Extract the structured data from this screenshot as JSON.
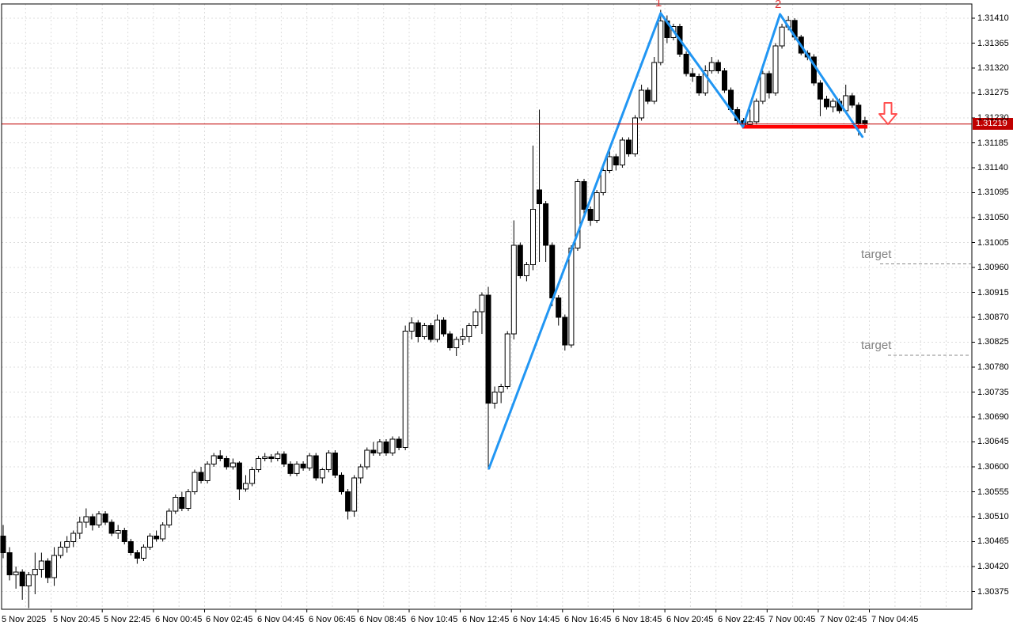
{
  "chart_data": {
    "type": "candlestick",
    "title": "",
    "grid": "dashed",
    "price_axis": {
      "side": "right",
      "labels": [
        "1.31410",
        "1.31365",
        "1.31320",
        "1.31275",
        "1.31230",
        "1.31185",
        "1.31140",
        "1.31095",
        "1.31050",
        "1.31005",
        "1.30960",
        "1.30915",
        "1.30870",
        "1.30825",
        "1.30780",
        "1.30735",
        "1.30690",
        "1.30645",
        "1.30600",
        "1.30555",
        "1.30510",
        "1.30465",
        "1.30420",
        "1.30375"
      ],
      "top_value": 1.3141,
      "step": 0.00045
    },
    "time_axis": {
      "labels": [
        "5 Nov 2025",
        "5 Nov 20:45",
        "5 Nov 22:45",
        "6 Nov 00:45",
        "6 Nov 02:45",
        "6 Nov 04:45",
        "6 Nov 06:45",
        "6 Nov 08:45",
        "6 Nov 10:45",
        "6 Nov 12:45",
        "6 Nov 14:45",
        "6 Nov 16:45",
        "6 Nov 18:45",
        "6 Nov 20:45",
        "6 Nov 22:45",
        "7 Nov 00:45",
        "7 Nov 02:45",
        "7 Nov 04:45"
      ]
    },
    "current_price": {
      "value": 1.31219,
      "label": "1.31219"
    },
    "candles": [
      [
        1.30475,
        1.30495,
        1.30435,
        1.30445
      ],
      [
        1.30445,
        1.30455,
        1.30395,
        1.30405
      ],
      [
        1.30405,
        1.3042,
        1.3038,
        1.3041
      ],
      [
        1.3041,
        1.30415,
        1.3036,
        1.30385
      ],
      [
        1.30385,
        1.3041,
        1.30345,
        1.30405
      ],
      [
        1.30405,
        1.30445,
        1.3037,
        1.30415
      ],
      [
        1.30415,
        1.30445,
        1.304,
        1.3043
      ],
      [
        1.3043,
        1.30435,
        1.3039,
        1.304
      ],
      [
        1.304,
        1.30455,
        1.30385,
        1.3044
      ],
      [
        1.3044,
        1.30465,
        1.30435,
        1.30455
      ],
      [
        1.30455,
        1.30475,
        1.30445,
        1.30465
      ],
      [
        1.30465,
        1.30485,
        1.30455,
        1.3048
      ],
      [
        1.3048,
        1.3051,
        1.3047,
        1.305
      ],
      [
        1.305,
        1.30525,
        1.3049,
        1.3051
      ],
      [
        1.3051,
        1.30515,
        1.30485,
        1.30495
      ],
      [
        1.30495,
        1.3052,
        1.3049,
        1.30515
      ],
      [
        1.30515,
        1.3052,
        1.30495,
        1.305
      ],
      [
        1.305,
        1.30505,
        1.30475,
        1.3048
      ],
      [
        1.3048,
        1.30495,
        1.3047,
        1.30485
      ],
      [
        1.30485,
        1.3049,
        1.3046,
        1.30465
      ],
      [
        1.30465,
        1.3047,
        1.3044,
        1.30445
      ],
      [
        1.30445,
        1.3045,
        1.30425,
        1.30435
      ],
      [
        1.30435,
        1.3046,
        1.3043,
        1.30455
      ],
      [
        1.30455,
        1.3048,
        1.3045,
        1.30475
      ],
      [
        1.30475,
        1.30485,
        1.30465,
        1.3047
      ],
      [
        1.3047,
        1.305,
        1.30465,
        1.30495
      ],
      [
        1.30495,
        1.30525,
        1.3049,
        1.3052
      ],
      [
        1.3052,
        1.3055,
        1.30515,
        1.30545
      ],
      [
        1.30545,
        1.30555,
        1.3052,
        1.30525
      ],
      [
        1.30525,
        1.3056,
        1.3052,
        1.30555
      ],
      [
        1.30555,
        1.30595,
        1.3055,
        1.3059
      ],
      [
        1.3059,
        1.306,
        1.3057,
        1.30575
      ],
      [
        1.30575,
        1.3061,
        1.3057,
        1.30605
      ],
      [
        1.30605,
        1.30625,
        1.306,
        1.3062
      ],
      [
        1.3062,
        1.3063,
        1.3061,
        1.30615
      ],
      [
        1.30615,
        1.3062,
        1.30595,
        1.306
      ],
      [
        1.306,
        1.30615,
        1.30595,
        1.30607
      ],
      [
        1.30607,
        1.3061,
        1.3054,
        1.3056
      ],
      [
        1.3056,
        1.30585,
        1.30555,
        1.3057
      ],
      [
        1.3057,
        1.306,
        1.30565,
        1.30595
      ],
      [
        1.30595,
        1.3062,
        1.3059,
        1.30615
      ],
      [
        1.30615,
        1.30625,
        1.3061,
        1.30618
      ],
      [
        1.30618,
        1.30623,
        1.30608,
        1.30615
      ],
      [
        1.30615,
        1.30628,
        1.3061,
        1.30623
      ],
      [
        1.30623,
        1.30628,
        1.306,
        1.30605
      ],
      [
        1.30605,
        1.3061,
        1.30583,
        1.30588
      ],
      [
        1.30588,
        1.3061,
        1.30583,
        1.30605
      ],
      [
        1.30605,
        1.3061,
        1.30593,
        1.30598
      ],
      [
        1.30598,
        1.30625,
        1.30593,
        1.3062
      ],
      [
        1.3062,
        1.30625,
        1.30575,
        1.3058
      ],
      [
        1.3058,
        1.30598,
        1.3057,
        1.30595
      ],
      [
        1.30595,
        1.3063,
        1.3059,
        1.30625
      ],
      [
        1.30625,
        1.3063,
        1.3058,
        1.30585
      ],
      [
        1.30585,
        1.3059,
        1.3055,
        1.30555
      ],
      [
        1.30555,
        1.3056,
        1.30505,
        1.3052
      ],
      [
        1.3052,
        1.30585,
        1.3051,
        1.3058
      ],
      [
        1.3058,
        1.30605,
        1.3057,
        1.306
      ],
      [
        1.306,
        1.30635,
        1.30595,
        1.3063
      ],
      [
        1.3063,
        1.30645,
        1.3062,
        1.30625
      ],
      [
        1.30625,
        1.3065,
        1.3062,
        1.30645
      ],
      [
        1.30645,
        1.3065,
        1.3062,
        1.30625
      ],
      [
        1.30625,
        1.30655,
        1.3062,
        1.3065
      ],
      [
        1.3065,
        1.30655,
        1.3063,
        1.30635
      ],
      [
        1.30635,
        1.30855,
        1.3063,
        1.30845
      ],
      [
        1.30845,
        1.3087,
        1.3083,
        1.3086
      ],
      [
        1.3086,
        1.30865,
        1.30825,
        1.30835
      ],
      [
        1.30835,
        1.3086,
        1.3083,
        1.30855
      ],
      [
        1.30855,
        1.3086,
        1.30825,
        1.3083
      ],
      [
        1.3083,
        1.30875,
        1.30825,
        1.30865
      ],
      [
        1.30865,
        1.3087,
        1.30835,
        1.3084
      ],
      [
        1.3084,
        1.30845,
        1.3081,
        1.30815
      ],
      [
        1.30815,
        1.30835,
        1.308,
        1.3083
      ],
      [
        1.3083,
        1.3085,
        1.3082,
        1.30835
      ],
      [
        1.30835,
        1.3086,
        1.30825,
        1.30855
      ],
      [
        1.30855,
        1.30885,
        1.3085,
        1.3088
      ],
      [
        1.3088,
        1.30915,
        1.3084,
        1.3091
      ],
      [
        1.3091,
        1.30925,
        1.30595,
        1.30715
      ],
      [
        1.30715,
        1.30745,
        1.30705,
        1.30735
      ],
      [
        1.30735,
        1.3075,
        1.30715,
        1.30745
      ],
      [
        1.30745,
        1.30845,
        1.3074,
        1.3084
      ],
      [
        1.3084,
        1.31045,
        1.3083,
        1.31
      ],
      [
        1.31,
        1.31005,
        1.3094,
        1.30945
      ],
      [
        1.30945,
        1.3097,
        1.30935,
        1.30965
      ],
      [
        1.30965,
        1.3118,
        1.30955,
        1.31065
      ],
      [
        1.311,
        1.31245,
        1.3097,
        1.31075
      ],
      [
        1.31075,
        1.3108,
        1.3097,
        1.31
      ],
      [
        1.31,
        1.31005,
        1.3089,
        1.30905
      ],
      [
        1.30905,
        1.3091,
        1.30855,
        1.3087
      ],
      [
        1.3087,
        1.30875,
        1.3081,
        1.3082
      ],
      [
        1.3082,
        1.31,
        1.30815,
        1.30995
      ],
      [
        1.30995,
        1.3112,
        1.3099,
        1.31115
      ],
      [
        1.31115,
        1.3112,
        1.31055,
        1.31065
      ],
      [
        1.31065,
        1.3107,
        1.31035,
        1.31045
      ],
      [
        1.31045,
        1.311,
        1.3104,
        1.31095
      ],
      [
        1.31095,
        1.3114,
        1.3109,
        1.31135
      ],
      [
        1.31135,
        1.3117,
        1.3113,
        1.3116
      ],
      [
        1.3116,
        1.31165,
        1.31135,
        1.31145
      ],
      [
        1.31145,
        1.31195,
        1.3114,
        1.3119
      ],
      [
        1.3119,
        1.31195,
        1.3116,
        1.31165
      ],
      [
        1.31165,
        1.31235,
        1.3116,
        1.3123
      ],
      [
        1.3123,
        1.3129,
        1.31225,
        1.3128
      ],
      [
        1.3128,
        1.31285,
        1.31255,
        1.3126
      ],
      [
        1.3126,
        1.3134,
        1.31255,
        1.3133
      ],
      [
        1.3133,
        1.31425,
        1.31325,
        1.31405
      ],
      [
        1.31405,
        1.31415,
        1.31365,
        1.31375
      ],
      [
        1.31375,
        1.314,
        1.3137,
        1.31395
      ],
      [
        1.31395,
        1.314,
        1.3134,
        1.31345
      ],
      [
        1.31345,
        1.3135,
        1.31305,
        1.3131
      ],
      [
        1.3131,
        1.3132,
        1.31295,
        1.31305
      ],
      [
        1.31305,
        1.3131,
        1.3127,
        1.31275
      ],
      [
        1.31275,
        1.31325,
        1.3127,
        1.31315
      ],
      [
        1.31315,
        1.3134,
        1.3131,
        1.3133
      ],
      [
        1.3133,
        1.31335,
        1.3131,
        1.31315
      ],
      [
        1.31315,
        1.3132,
        1.31275,
        1.3128
      ],
      [
        1.3128,
        1.31285,
        1.3124,
        1.31245
      ],
      [
        1.31245,
        1.3125,
        1.31218,
        1.31225
      ],
      [
        1.31225,
        1.3123,
        1.31213,
        1.31218
      ],
      [
        1.31218,
        1.31245,
        1.31214,
        1.31223
      ],
      [
        1.31223,
        1.31265,
        1.31218,
        1.3126
      ],
      [
        1.3126,
        1.31315,
        1.31255,
        1.3131
      ],
      [
        1.3131,
        1.31315,
        1.31265,
        1.31275
      ],
      [
        1.31275,
        1.31365,
        1.3127,
        1.3136
      ],
      [
        1.3136,
        1.314,
        1.31355,
        1.31394
      ],
      [
        1.31394,
        1.31414,
        1.31388,
        1.31406
      ],
      [
        1.31406,
        1.3141,
        1.3137,
        1.31376
      ],
      [
        1.31376,
        1.3138,
        1.31343,
        1.31347
      ],
      [
        1.31347,
        1.31352,
        1.31334,
        1.3134
      ],
      [
        1.3134,
        1.31345,
        1.31288,
        1.31293
      ],
      [
        1.31293,
        1.31298,
        1.31233,
        1.31264
      ],
      [
        1.31264,
        1.3127,
        1.31245,
        1.3125
      ],
      [
        1.3125,
        1.31265,
        1.3124,
        1.3126
      ],
      [
        1.3126,
        1.31265,
        1.31238,
        1.31243
      ],
      [
        1.31243,
        1.3129,
        1.3124,
        1.3127
      ],
      [
        1.3127,
        1.31275,
        1.31248,
        1.31253
      ],
      [
        1.31253,
        1.31258,
        1.31198,
        1.3122
      ],
      [
        1.31225,
        1.31232,
        1.31203,
        1.31219
      ]
    ],
    "annotations": {
      "peak_labels": [
        {
          "text": "1",
          "index": 102.6
        },
        {
          "text": "2",
          "index": 121.4
        }
      ],
      "pattern_line": {
        "color": "#2196f3",
        "points": [
          {
            "index": 76.1,
            "price": 1.30597
          },
          {
            "index": 103.0,
            "price": 1.31419
          },
          {
            "index": 115.9,
            "price": 1.31214
          },
          {
            "index": 121.7,
            "price": 1.31417
          },
          {
            "index": 134.6,
            "price": 1.31196
          }
        ]
      },
      "support_line": {
        "color": "#ff0000",
        "price": 1.31214,
        "from_index": 115.8,
        "to_index": 135.4
      },
      "targets": [
        {
          "label": "target",
          "price": 1.30965
        },
        {
          "label": "target",
          "price": 1.308
        }
      ],
      "arrow": {
        "direction": "down",
        "color": "#ff4f4f"
      }
    },
    "colors": {
      "background": "#ffffff",
      "bull_fill": "#ffffff",
      "bear_fill": "#000000",
      "candle_outline": "#000000",
      "grid": "#dcdcdc",
      "frame": "#000000",
      "current_price_line": "#c00000",
      "badge_bg": "#c00000",
      "badge_text": "#ffffff",
      "target_dash": "#8a8a8a",
      "target_text": "#828282",
      "peak_label": "#e03232"
    }
  }
}
